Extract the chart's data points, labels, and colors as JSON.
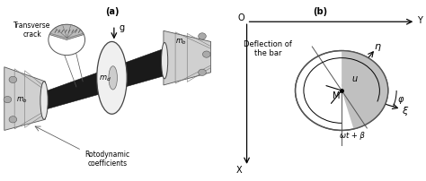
{
  "fig_width": 4.74,
  "fig_height": 2.02,
  "dpi": 100,
  "panel_a_label": "(a)",
  "panel_b_label": "(b)",
  "label_transverse_crack": "Transverse\ncrack",
  "label_rotodynamic": "Rotodynamic\ncoefficients",
  "label_deflection": "Deflection of\nthe bar",
  "label_md": "$m_d$",
  "label_mb_left": "$m_b$",
  "label_mb_right": "$m_b$",
  "label_g": "g",
  "label_u": "u",
  "label_M": "M",
  "label_eta": "η",
  "label_xi": "ξ",
  "label_phi": "φ",
  "label_omega": "ωt + β",
  "label_O": "O",
  "label_Y": "Y",
  "label_X": "X"
}
